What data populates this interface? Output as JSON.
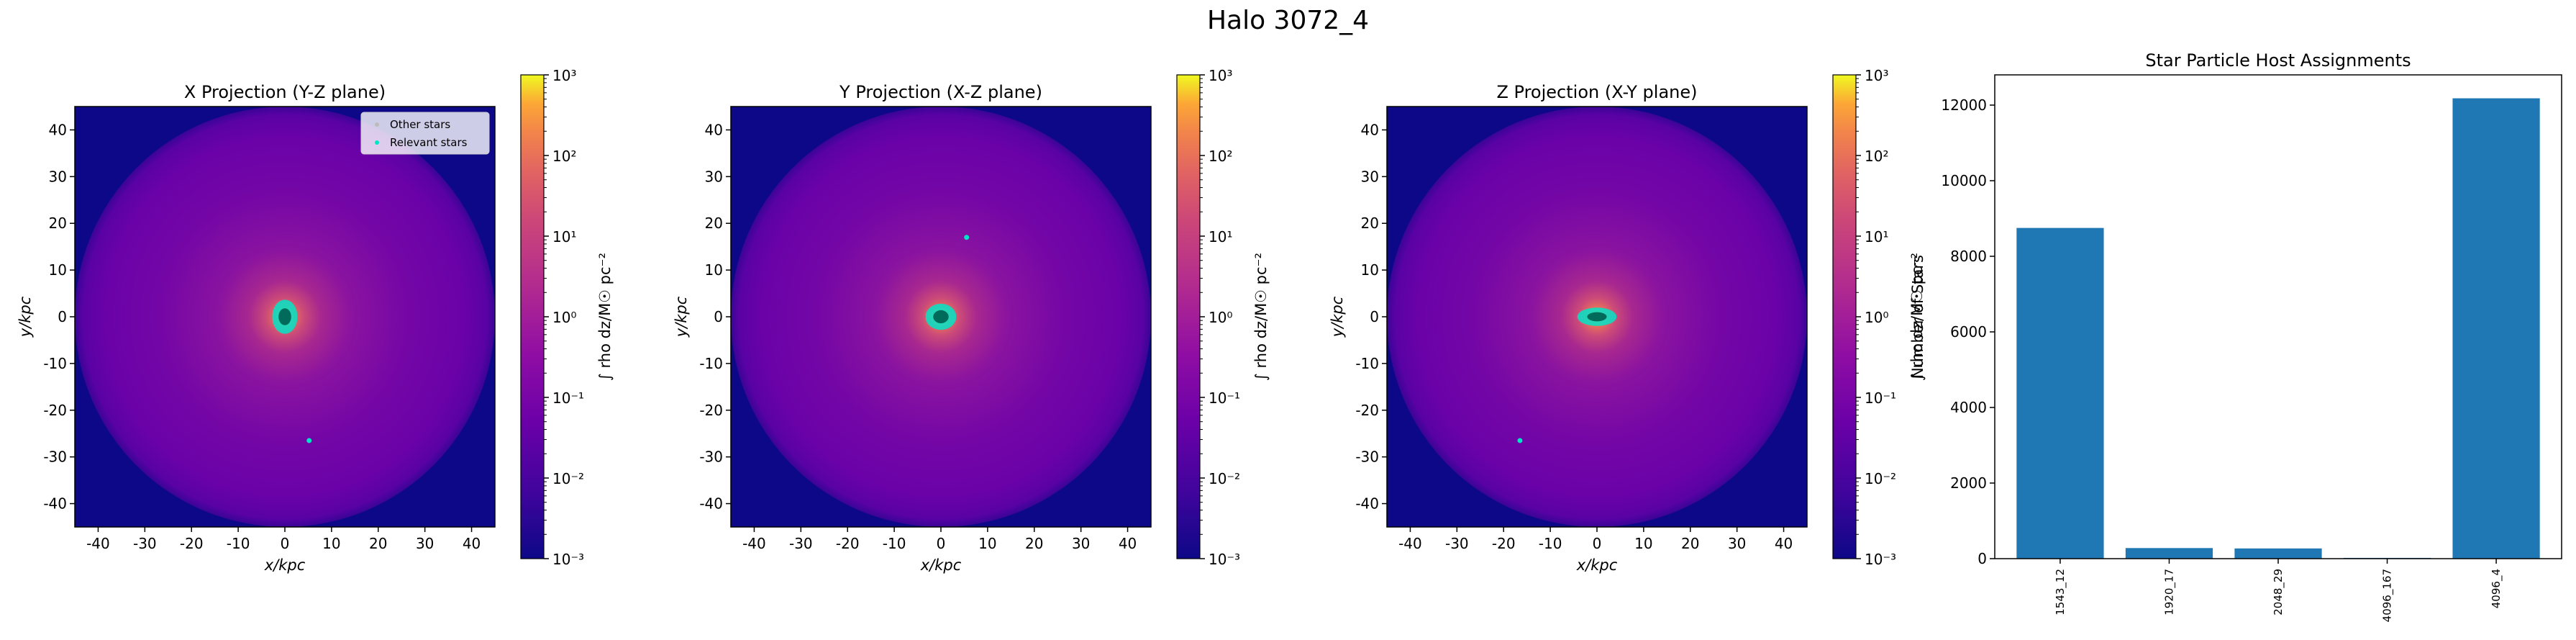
{
  "figure": {
    "suptitle": "Halo 3072_4"
  },
  "colors": {
    "plasma_low": "#0d0887",
    "plasma_high": "#f0f921",
    "bar": "#1f77b4",
    "relevant_stars": "#00e5c8"
  },
  "chart_data": [
    {
      "type": "heatmap",
      "title": "X Projection (Y-Z plane)",
      "xlabel": "x/kpc",
      "ylabel": "y/kpc",
      "xlim": [
        -45,
        45
      ],
      "ylim": [
        -45,
        45
      ],
      "xticks": [
        -40,
        -30,
        -20,
        -10,
        0,
        10,
        20,
        30,
        40
      ],
      "yticks": [
        -40,
        -30,
        -20,
        -10,
        0,
        10,
        20,
        30,
        40
      ],
      "colorbar": {
        "label": "∫ rho dz/M☉ pc⁻²",
        "scale": "log",
        "ticks": [
          "10³",
          "10²",
          "10¹",
          "10⁰",
          "10⁻¹",
          "10⁻²",
          "10⁻³"
        ]
      },
      "legend": {
        "placement": "upper-right",
        "entries": [
          "Other stars",
          "Relevant stars"
        ]
      },
      "stars": [
        {
          "x": 0.0,
          "y": 0.0,
          "rx": 1.8,
          "ry": 2.6
        },
        {
          "x": 5.2,
          "y": -26.5,
          "rx": 0.4,
          "ry": 0.4
        }
      ]
    },
    {
      "type": "heatmap",
      "title": "Y Projection (X-Z plane)",
      "xlabel": "x/kpc",
      "ylabel": "y/kpc",
      "xlim": [
        -45,
        45
      ],
      "ylim": [
        -45,
        45
      ],
      "xticks": [
        -40,
        -30,
        -20,
        -10,
        0,
        10,
        20,
        30,
        40
      ],
      "yticks": [
        -40,
        -30,
        -20,
        -10,
        0,
        10,
        20,
        30,
        40
      ],
      "colorbar": {
        "label": "∫ rho dz/M☉ pc⁻²",
        "scale": "log",
        "ticks": [
          "10³",
          "10²",
          "10¹",
          "10⁰",
          "10⁻¹",
          "10⁻²",
          "10⁻³"
        ]
      },
      "stars": [
        {
          "x": 0.0,
          "y": 0.0,
          "rx": 2.2,
          "ry": 2.0
        },
        {
          "x": 5.5,
          "y": 17.0,
          "rx": 0.4,
          "ry": 0.4
        }
      ]
    },
    {
      "type": "heatmap",
      "title": "Z Projection (X-Y plane)",
      "xlabel": "x/kpc",
      "ylabel": "y/kpc",
      "xlim": [
        -45,
        45
      ],
      "ylim": [
        -45,
        45
      ],
      "xticks": [
        -40,
        -30,
        -20,
        -10,
        0,
        10,
        20,
        30,
        40
      ],
      "yticks": [
        -40,
        -30,
        -20,
        -10,
        0,
        10,
        20,
        30,
        40
      ],
      "colorbar": {
        "label": "∫ rho dz/M☉ pc⁻²",
        "scale": "log",
        "ticks": [
          "10³",
          "10²",
          "10¹",
          "10⁰",
          "10⁻¹",
          "10⁻²",
          "10⁻³"
        ]
      },
      "stars": [
        {
          "x": 0.0,
          "y": 0.0,
          "rx": 2.8,
          "ry": 1.4
        },
        {
          "x": -16.5,
          "y": -26.5,
          "rx": 0.4,
          "ry": 0.4
        }
      ]
    },
    {
      "type": "bar",
      "title": "Star Particle Host Assignments",
      "xlabel": "",
      "ylabel": "Number of Stars",
      "categories": [
        "1543_12",
        "1920_17",
        "2048_29",
        "4096_167",
        "4096_4"
      ],
      "values": [
        8750,
        280,
        270,
        20,
        12180
      ],
      "ylim": [
        0,
        12800
      ],
      "yticks": [
        0,
        2000,
        4000,
        6000,
        8000,
        10000,
        12000
      ]
    }
  ]
}
